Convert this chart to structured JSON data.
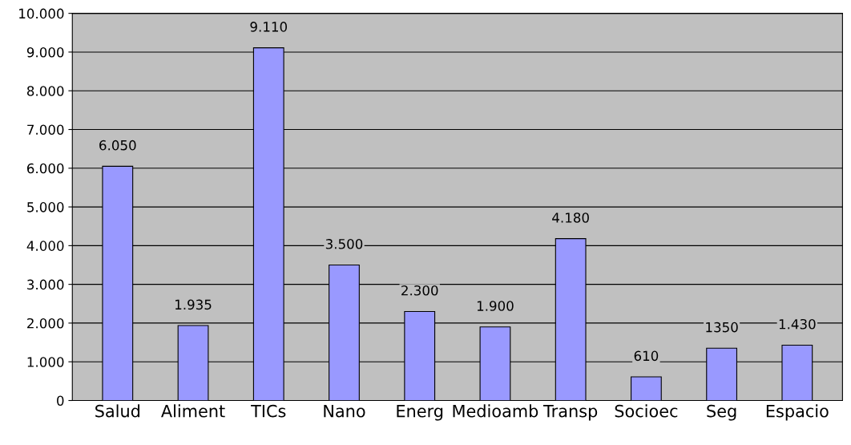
{
  "chart_data": {
    "type": "bar",
    "categories": [
      "Salud",
      "Aliment",
      "TICs",
      "Nano",
      "Energ",
      "Medioamb",
      "Transp",
      "Socioec",
      "Seg",
      "Espacio"
    ],
    "values": [
      6050,
      1935,
      9110,
      3500,
      2300,
      1900,
      4180,
      610,
      1350,
      1430
    ],
    "value_labels": [
      "6.050",
      "1.935",
      "9.110",
      "3.500",
      "2.300",
      "1.900",
      "4.180",
      "610",
      "1350",
      "1.430"
    ],
    "color": "#9999ff",
    "ylim": [
      0,
      10000
    ],
    "yticks": [
      0,
      {
        "value": 1000,
        "label": "1.000"
      },
      {
        "value": 2000,
        "label": "2.000"
      },
      {
        "value": 3000,
        "label": "3.000"
      },
      {
        "value": 4000,
        "label": "4.000"
      },
      {
        "value": 5000,
        "label": "5.000"
      },
      {
        "value": 6000,
        "label": "6.000"
      },
      {
        "value": 7000,
        "label": "7.000"
      },
      {
        "value": 8000,
        "label": "8.000"
      },
      {
        "value": 9000,
        "label": "9.000"
      },
      {
        "value": 10000,
        "label": "10.000"
      }
    ],
    "grid": "y",
    "legend": false
  }
}
